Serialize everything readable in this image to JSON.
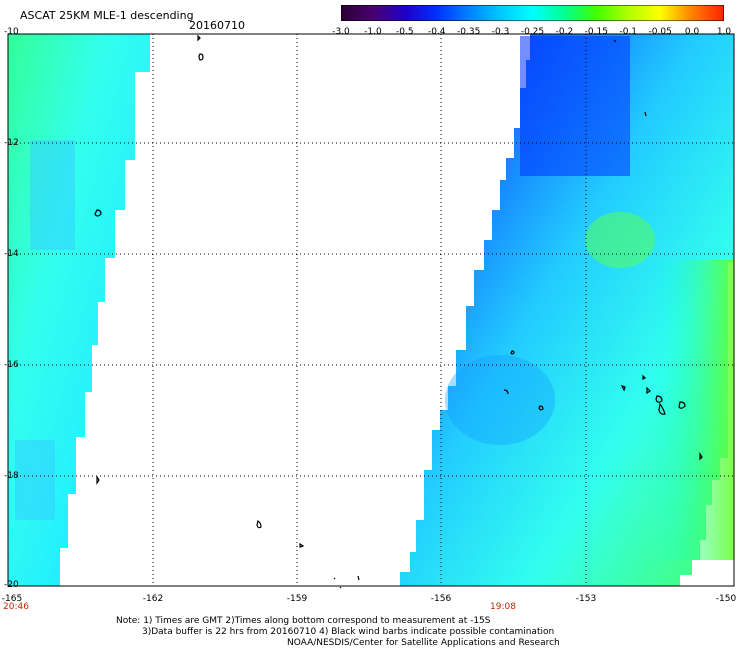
{
  "title": "ASCAT 25KM MLE-1 descending",
  "date": "20160710",
  "colorbar": {
    "labels": [
      "-3.0",
      "-1.0",
      "-0.5",
      "-0.4",
      "-0.35",
      "-0.3",
      "-0.25",
      "-0.2",
      "-0.15",
      "-0.1",
      "-0.05",
      "0.0",
      "1.0"
    ],
    "colors": [
      "#2a0033",
      "#4a0070",
      "#2000c8",
      "#0030ff",
      "#0080ff",
      "#00c8ff",
      "#00ffff",
      "#00ff90",
      "#40ff00",
      "#b0ff00",
      "#ffff00",
      "#ff8000",
      "#ff2000"
    ]
  },
  "axes": {
    "lat_labels": [
      "-10",
      "-12",
      "-14",
      "-16",
      "-18",
      "-20"
    ],
    "lon_labels": [
      "-165",
      "-162",
      "-159",
      "-156",
      "-153",
      "-150"
    ]
  },
  "times": [
    "20:46",
    "19:08"
  ],
  "notes": [
    "Note: 1) Times are GMT 2)Times along bottom correspond to measurement at -15S",
    "3)Data buffer is 22 hrs from 20160710 4) Black wind barbs indicate possible contamination",
    "NOAA/NESDIS/Center for Satellite Applications and Research"
  ]
}
